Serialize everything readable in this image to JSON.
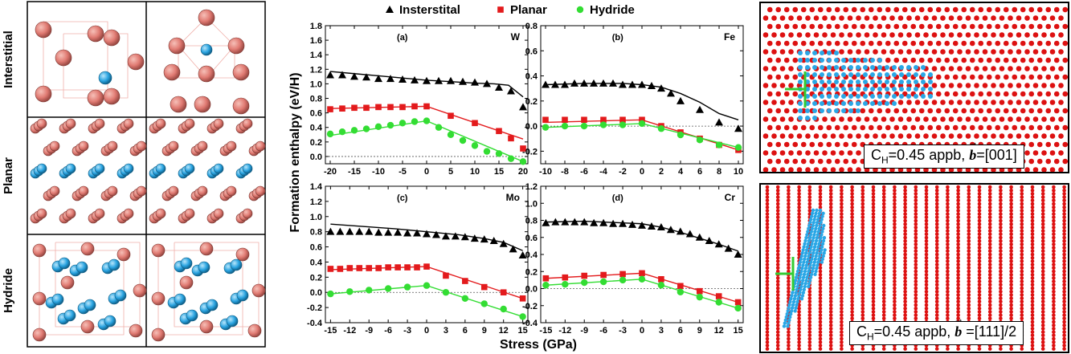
{
  "left_panel": {
    "rows": [
      {
        "label": "Interstitial"
      },
      {
        "label": "Planar"
      },
      {
        "label": "Hydride"
      }
    ]
  },
  "legend": {
    "items": [
      {
        "label": "Insterstital",
        "marker": "triangle",
        "color": "#000000"
      },
      {
        "label": "Planar",
        "marker": "square",
        "color": "#e31a1c"
      },
      {
        "label": "Hydride",
        "marker": "circle",
        "color": "#33dd33"
      }
    ]
  },
  "shared_ylabel": "Formation enthalpy (eV/H)",
  "shared_xlabel": "Stress (GPa)",
  "colors": {
    "interstitial": "#000000",
    "planar": "#e31a1c",
    "hydride": "#33dd33",
    "metal_atom": "#e07a72",
    "hydrogen_atom": "#29a3e0",
    "sim_fe": "#dd1111",
    "sim_h": "#2aa7e6",
    "dislocation": "#33cc33"
  },
  "chart_data": [
    {
      "type": "line",
      "panel": "(a)",
      "element": "W",
      "x": [
        -20,
        -17.5,
        -15,
        -12.5,
        -10,
        -7.5,
        -5,
        -2.5,
        0,
        2.5,
        5,
        7.5,
        10,
        12.5,
        15,
        17.5,
        20
      ],
      "xticks": [
        -20,
        -15,
        -10,
        -5,
        0,
        5,
        10,
        15,
        20
      ],
      "xlim": [
        -21,
        21
      ],
      "ylim": [
        -0.1,
        1.8
      ],
      "yticks": [
        0.0,
        0.2,
        0.4,
        0.6,
        0.8,
        1.0,
        1.2,
        1.4,
        1.6,
        1.8
      ],
      "series": [
        {
          "name": "Insterstital",
          "markers": [
            1.12,
            1.12,
            1.1,
            1.09,
            1.07,
            1.07,
            1.06,
            1.05,
            1.04,
            1.04,
            1.04,
            1.03,
            1.02,
            1.0,
            0.95,
            0.9,
            0.68
          ],
          "line_x": [
            -20,
            -15,
            -10,
            -5,
            0,
            5,
            10,
            14,
            17,
            20
          ],
          "line_y": [
            1.17,
            1.14,
            1.11,
            1.08,
            1.05,
            1.03,
            1.01,
            1.0,
            0.98,
            0.82
          ]
        },
        {
          "name": "Planar",
          "markers": [
            0.65,
            0.66,
            0.67,
            0.67,
            0.68,
            0.68,
            0.68,
            0.69,
            0.69,
            null,
            0.56,
            null,
            0.46,
            null,
            0.35,
            0.25,
            0.11
          ],
          "line_x": [
            -20,
            0,
            20
          ],
          "line_y": [
            0.66,
            0.69,
            0.24
          ]
        },
        {
          "name": "Hydride",
          "markers": [
            0.31,
            0.34,
            0.36,
            0.38,
            0.41,
            0.43,
            0.46,
            0.48,
            0.49,
            0.4,
            0.3,
            0.22,
            0.15,
            0.07,
            0.04,
            -0.03,
            -0.07
          ],
          "line_x": [
            -20,
            0,
            20
          ],
          "line_y": [
            0.29,
            0.49,
            -0.07
          ]
        }
      ]
    },
    {
      "type": "line",
      "panel": "(b)",
      "element": "Fe",
      "x": [
        -10,
        -9,
        -8,
        -7,
        -6,
        -5,
        -4,
        -3,
        -2,
        -1,
        0,
        1,
        2,
        3,
        4,
        5,
        6,
        7,
        8,
        9,
        10
      ],
      "xticks": [
        -10,
        -8,
        -6,
        -4,
        -2,
        0,
        2,
        4,
        6,
        8,
        10
      ],
      "xlim": [
        -10.5,
        10.5
      ],
      "ylim": [
        -0.3,
        0.8
      ],
      "yticks": [
        -0.2,
        0.0,
        0.2,
        0.4,
        0.6,
        0.8
      ],
      "series": [
        {
          "name": "Insterstital",
          "markers": [
            0.33,
            0.33,
            0.33,
            0.34,
            0.34,
            0.34,
            0.34,
            0.34,
            0.33,
            0.33,
            0.33,
            0.32,
            0.3,
            0.26,
            0.2,
            null,
            0.13,
            null,
            0.03,
            null,
            -0.02
          ],
          "line_x": [
            -10,
            -6,
            -2,
            0,
            2,
            4,
            6,
            8,
            10
          ],
          "line_y": [
            0.33,
            0.34,
            0.34,
            0.33,
            0.31,
            0.26,
            0.19,
            0.1,
            0.05
          ]
        },
        {
          "name": "Planar",
          "markers": [
            0.05,
            null,
            0.05,
            null,
            0.05,
            null,
            0.05,
            null,
            0.05,
            null,
            0.05,
            null,
            0.0,
            null,
            -0.05,
            null,
            -0.1,
            null,
            -0.15,
            null,
            -0.19
          ],
          "line_x": [
            -10,
            0,
            10
          ],
          "line_y": [
            0.03,
            0.05,
            -0.19
          ]
        },
        {
          "name": "Hydride",
          "markers": [
            -0.01,
            null,
            0.0,
            null,
            0.0,
            null,
            0.01,
            null,
            0.01,
            null,
            0.02,
            null,
            -0.02,
            null,
            -0.07,
            null,
            -0.11,
            null,
            -0.15,
            null,
            -0.17
          ],
          "line_x": [
            -10,
            0,
            10
          ],
          "line_y": [
            -0.01,
            0.02,
            -0.17
          ]
        }
      ]
    },
    {
      "type": "line",
      "panel": "(c)",
      "element": "Mo",
      "x": [
        -15,
        -13.5,
        -12,
        -10.5,
        -9,
        -7.5,
        -6,
        -4.5,
        -3,
        -1.5,
        0,
        1.5,
        3,
        4.5,
        6,
        7.5,
        9,
        10.5,
        12,
        13.5,
        15
      ],
      "xticks": [
        -15,
        -12,
        -9,
        -6,
        -3,
        0,
        3,
        6,
        9,
        12,
        15
      ],
      "xlim": [
        -15.8,
        15.8
      ],
      "ylim": [
        -0.4,
        1.4
      ],
      "yticks": [
        -0.4,
        -0.2,
        0.0,
        0.2,
        0.4,
        0.6,
        0.8,
        1.0,
        1.2,
        1.4
      ],
      "series": [
        {
          "name": "Insterstital",
          "markers": [
            0.8,
            0.8,
            0.8,
            0.8,
            0.8,
            0.79,
            0.79,
            0.79,
            0.78,
            0.78,
            0.77,
            0.76,
            0.74,
            0.74,
            0.73,
            0.71,
            0.7,
            0.68,
            0.64,
            0.57,
            0.49
          ],
          "line_x": [
            -15,
            -10,
            -5,
            0,
            5,
            9,
            12,
            15
          ],
          "line_y": [
            0.9,
            0.87,
            0.84,
            0.8,
            0.76,
            0.71,
            0.66,
            0.55
          ]
        },
        {
          "name": "Planar",
          "markers": [
            0.31,
            0.31,
            0.32,
            0.32,
            0.32,
            0.32,
            0.33,
            0.33,
            0.33,
            0.33,
            0.34,
            null,
            0.22,
            null,
            0.15,
            null,
            0.07,
            null,
            0.0,
            null,
            -0.08
          ],
          "line_x": [
            -15,
            0,
            15
          ],
          "line_y": [
            0.3,
            0.34,
            -0.08
          ]
        },
        {
          "name": "Hydride",
          "markers": [
            -0.02,
            null,
            0.01,
            null,
            0.03,
            null,
            0.05,
            null,
            0.07,
            null,
            0.09,
            null,
            0.0,
            null,
            -0.08,
            null,
            -0.15,
            null,
            -0.22,
            null,
            -0.32
          ],
          "line_x": [
            -15,
            0,
            15
          ],
          "line_y": [
            -0.02,
            0.09,
            -0.32
          ]
        }
      ]
    },
    {
      "type": "line",
      "panel": "(d)",
      "element": "Cr",
      "x": [
        -15,
        -13.5,
        -12,
        -10.5,
        -9,
        -7.5,
        -6,
        -4.5,
        -3,
        -1.5,
        0,
        1.5,
        3,
        4.5,
        6,
        7.5,
        9,
        10.5,
        12,
        13.5,
        15
      ],
      "xticks": [
        -15,
        -12,
        -9,
        -6,
        -3,
        0,
        3,
        6,
        9,
        12,
        15
      ],
      "xlim": [
        -15.8,
        15.8
      ],
      "ylim": [
        -0.4,
        1.2
      ],
      "yticks": [
        -0.4,
        -0.2,
        0.0,
        0.2,
        0.4,
        0.6,
        0.8,
        1.0,
        1.2
      ],
      "series": [
        {
          "name": "Insterstital",
          "markers": [
            0.77,
            0.78,
            0.78,
            0.78,
            0.78,
            0.77,
            0.77,
            0.76,
            0.76,
            0.75,
            0.74,
            0.73,
            0.72,
            0.69,
            0.67,
            0.64,
            0.6,
            0.56,
            0.52,
            0.47,
            0.4
          ],
          "line_x": [
            -15,
            -9,
            -3,
            0,
            3,
            6,
            9,
            12,
            15
          ],
          "line_y": [
            0.78,
            0.79,
            0.77,
            0.76,
            0.72,
            0.66,
            0.59,
            0.52,
            0.44
          ]
        },
        {
          "name": "Planar",
          "markers": [
            0.12,
            null,
            0.13,
            null,
            0.15,
            null,
            0.16,
            null,
            0.17,
            null,
            0.18,
            null,
            0.11,
            null,
            0.03,
            null,
            -0.03,
            null,
            -0.09,
            null,
            -0.16
          ],
          "line_x": [
            -15,
            0,
            15
          ],
          "line_y": [
            0.12,
            0.18,
            -0.16
          ]
        },
        {
          "name": "Hydride",
          "markers": [
            0.04,
            null,
            0.05,
            null,
            0.07,
            null,
            0.08,
            null,
            0.1,
            null,
            0.11,
            null,
            0.04,
            null,
            -0.04,
            null,
            -0.1,
            null,
            -0.16,
            null,
            -0.23
          ],
          "line_x": [
            -15,
            0,
            15
          ],
          "line_y": [
            0.04,
            0.11,
            -0.23
          ]
        }
      ]
    }
  ],
  "simulations": [
    {
      "label_pre": "C",
      "label_sub": "H",
      "label_mid": "=0.45 appb, ",
      "label_b": "b",
      "label_post": "=[001]",
      "lattice": "square"
    },
    {
      "label_pre": "C",
      "label_sub": "H",
      "label_mid": "=0.45 appb, ",
      "label_b": "b",
      "label_post": " =[111]/2",
      "lattice": "columns"
    }
  ]
}
